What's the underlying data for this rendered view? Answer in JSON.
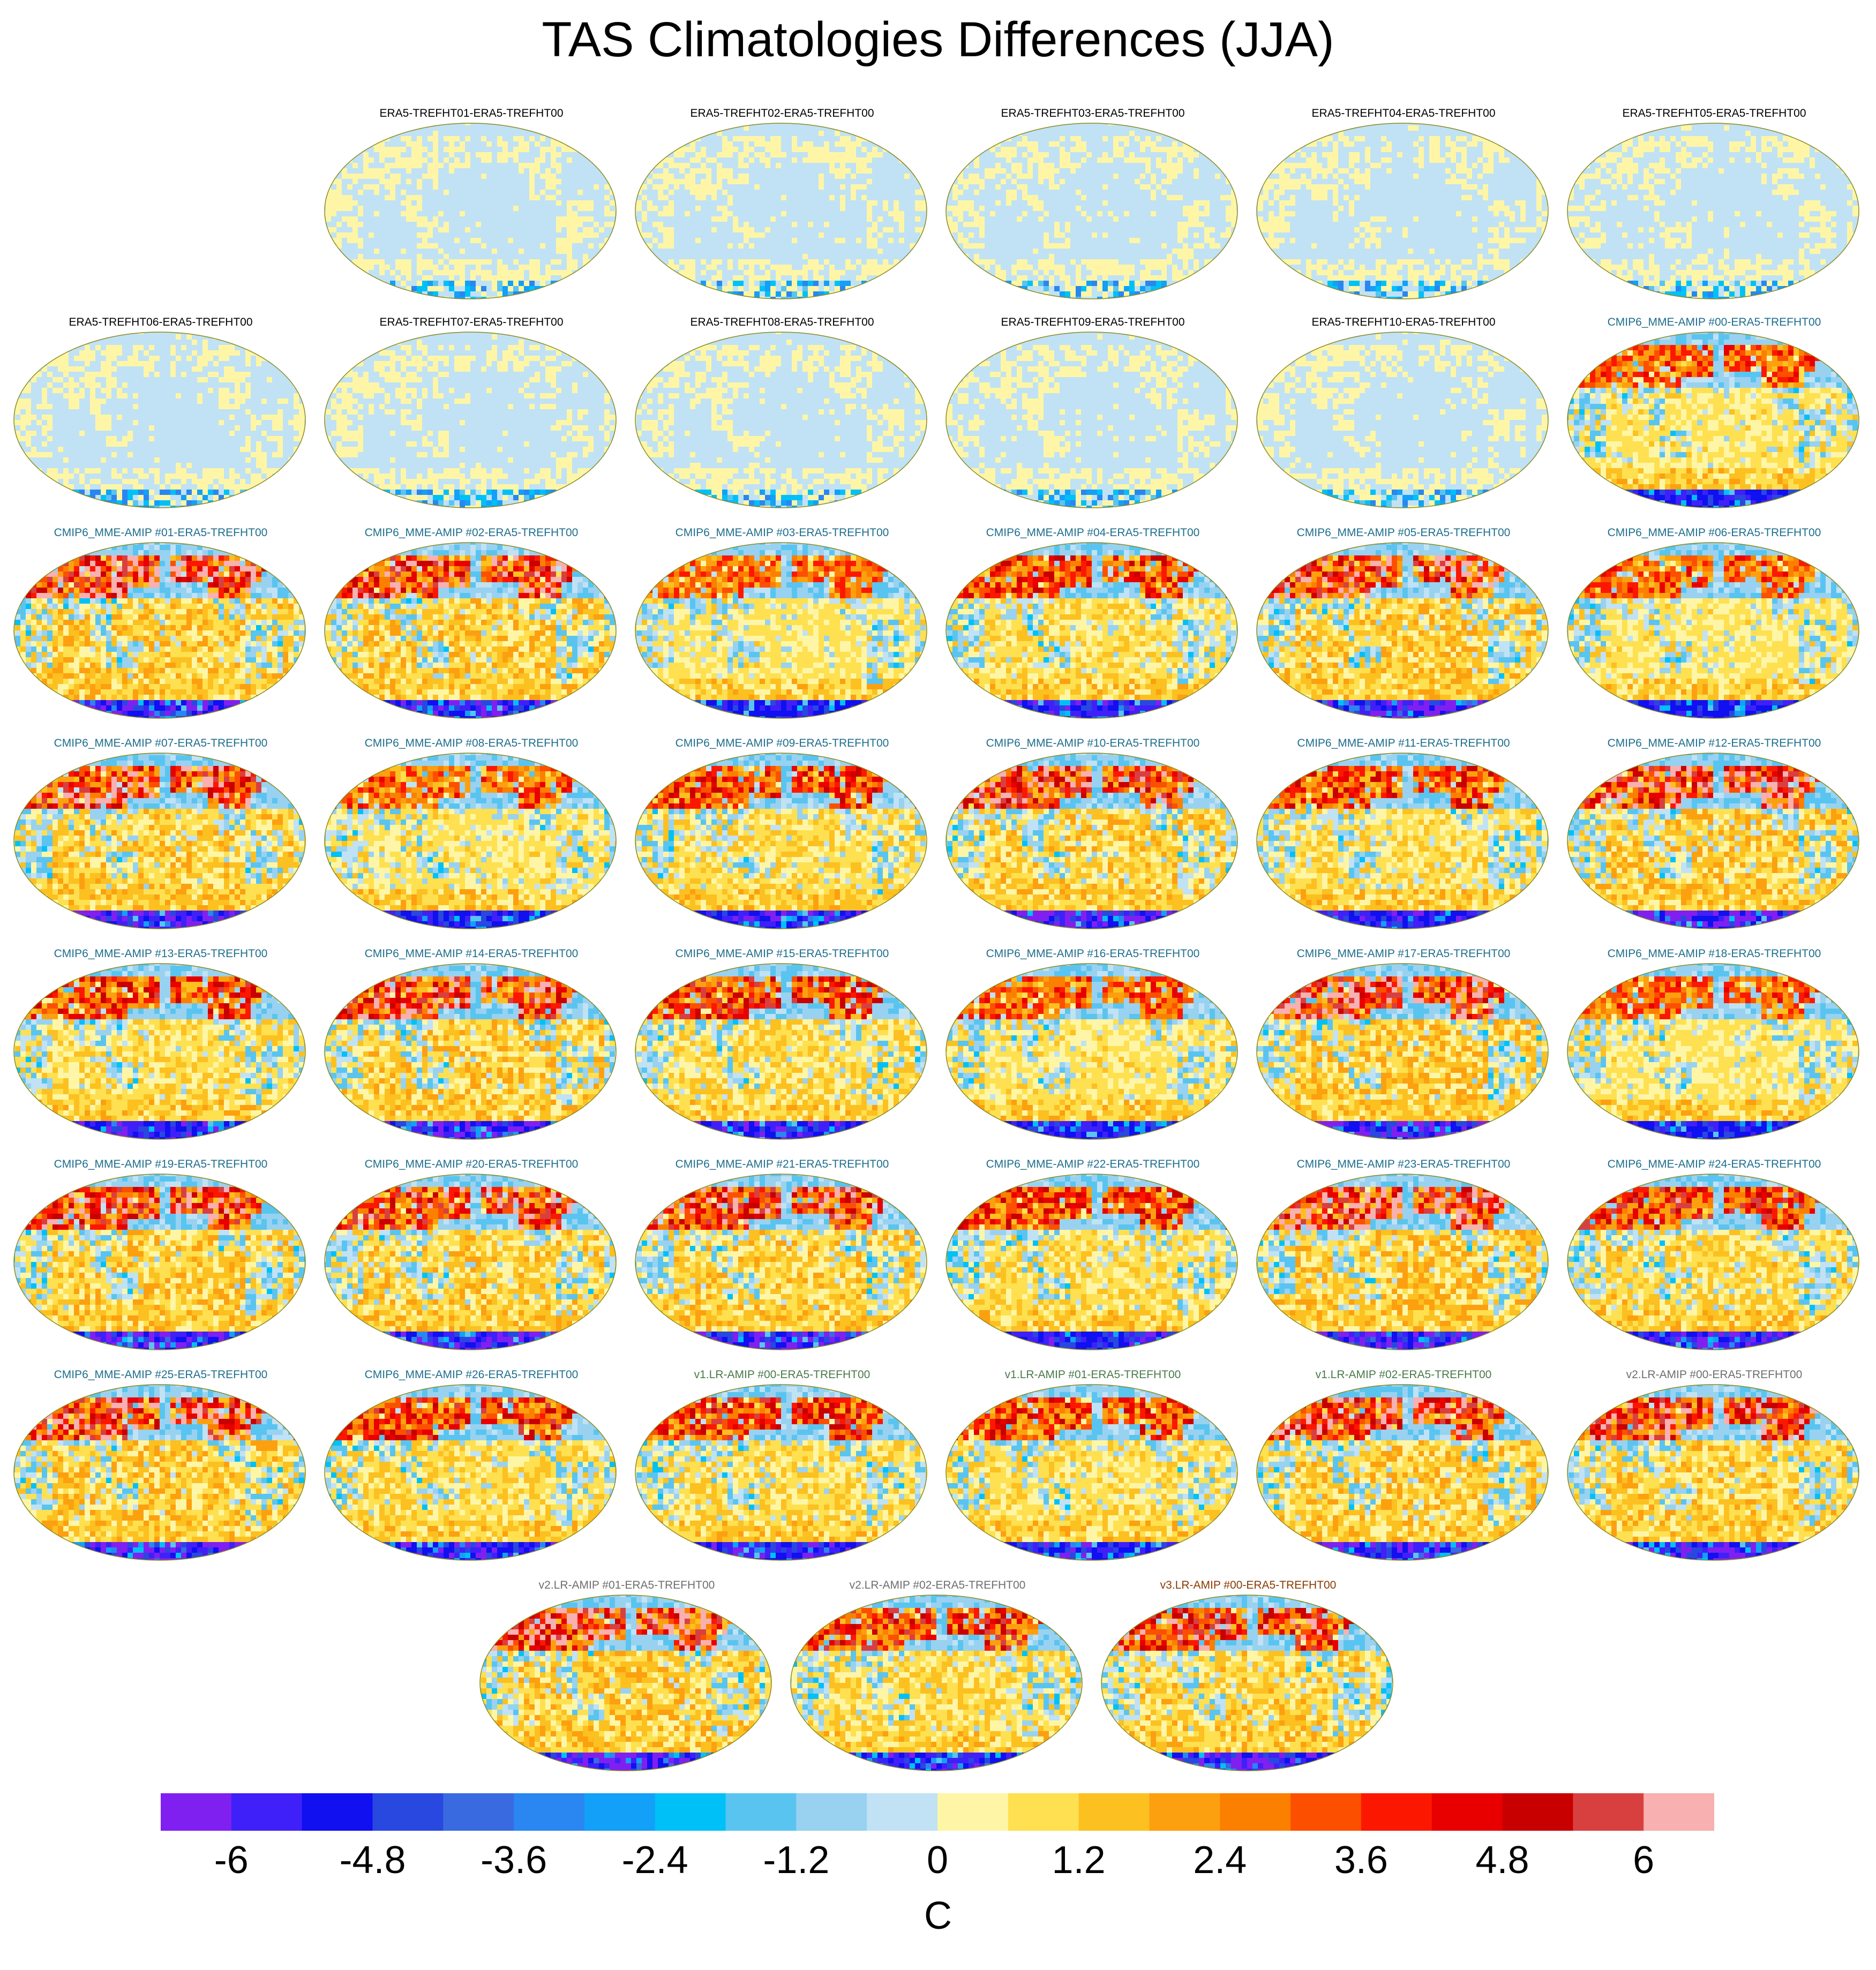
{
  "title": "TAS Climatologies Differences (JJA)",
  "units": "C",
  "chart_data": {
    "type": "heatmap",
    "title": "TAS Climatologies Differences (JJA)",
    "projection": "robinson",
    "colorbar": {
      "levels": [
        -6.6,
        -6,
        -5.4,
        -4.8,
        -4.2,
        -3.6,
        -3,
        -2.4,
        -1.8,
        -1.2,
        -0.6,
        0,
        0.6,
        1.2,
        1.8,
        2.4,
        3,
        3.6,
        4.2,
        4.8,
        5.4,
        6,
        6.6
      ],
      "tick_labels": [
        "-6",
        "-4.8",
        "-3.6",
        "-2.4",
        "-1.2",
        "0",
        "1.2",
        "2.4",
        "3.6",
        "4.8",
        "6"
      ],
      "tick_values": [
        -6,
        -4.8,
        -3.6,
        -2.4,
        -1.2,
        0,
        1.2,
        2.4,
        3.6,
        4.8,
        6
      ],
      "colors": [
        "#8020f0",
        "#4020f8",
        "#1010f0",
        "#2848e0",
        "#3a6ae0",
        "#2a86f0",
        "#12a0f8",
        "#00c0f8",
        "#5ac4f0",
        "#98d2f0",
        "#c0e2f4",
        "#fef6a6",
        "#fee050",
        "#fcc020",
        "#fca010",
        "#fc8000",
        "#fc5000",
        "#fc1800",
        "#e80000",
        "#c80000",
        "#d84040",
        "#f8b0b0"
      ],
      "label": "C"
    },
    "panels": [
      {
        "label": "ERA5-TREFHT01-ERA5-TREFHT00",
        "color": "#000000",
        "style": "era"
      },
      {
        "label": "ERA5-TREFHT02-ERA5-TREFHT00",
        "color": "#000000",
        "style": "era"
      },
      {
        "label": "ERA5-TREFHT03-ERA5-TREFHT00",
        "color": "#000000",
        "style": "era"
      },
      {
        "label": "ERA5-TREFHT04-ERA5-TREFHT00",
        "color": "#000000",
        "style": "era"
      },
      {
        "label": "ERA5-TREFHT05-ERA5-TREFHT00",
        "color": "#000000",
        "style": "era"
      },
      {
        "label": "ERA5-TREFHT06-ERA5-TREFHT00",
        "color": "#000000",
        "style": "era"
      },
      {
        "label": "ERA5-TREFHT07-ERA5-TREFHT00",
        "color": "#000000",
        "style": "era"
      },
      {
        "label": "ERA5-TREFHT08-ERA5-TREFHT00",
        "color": "#000000",
        "style": "era"
      },
      {
        "label": "ERA5-TREFHT09-ERA5-TREFHT00",
        "color": "#000000",
        "style": "era"
      },
      {
        "label": "ERA5-TREFHT10-ERA5-TREFHT00",
        "color": "#000000",
        "style": "era"
      },
      {
        "label": "CMIP6_MME-AMIP  #00-ERA5-TREFHT00",
        "color": "#1e6e8c",
        "style": "model"
      },
      {
        "label": "CMIP6_MME-AMIP  #01-ERA5-TREFHT00",
        "color": "#1e6e8c",
        "style": "model"
      },
      {
        "label": "CMIP6_MME-AMIP  #02-ERA5-TREFHT00",
        "color": "#1e6e8c",
        "style": "model"
      },
      {
        "label": "CMIP6_MME-AMIP  #03-ERA5-TREFHT00",
        "color": "#1e6e8c",
        "style": "model"
      },
      {
        "label": "CMIP6_MME-AMIP  #04-ERA5-TREFHT00",
        "color": "#1e6e8c",
        "style": "model"
      },
      {
        "label": "CMIP6_MME-AMIP  #05-ERA5-TREFHT00",
        "color": "#1e6e8c",
        "style": "model"
      },
      {
        "label": "CMIP6_MME-AMIP  #06-ERA5-TREFHT00",
        "color": "#1e6e8c",
        "style": "model"
      },
      {
        "label": "CMIP6_MME-AMIP  #07-ERA5-TREFHT00",
        "color": "#1e6e8c",
        "style": "model"
      },
      {
        "label": "CMIP6_MME-AMIP  #08-ERA5-TREFHT00",
        "color": "#1e6e8c",
        "style": "model"
      },
      {
        "label": "CMIP6_MME-AMIP  #09-ERA5-TREFHT00",
        "color": "#1e6e8c",
        "style": "model"
      },
      {
        "label": "CMIP6_MME-AMIP  #10-ERA5-TREFHT00",
        "color": "#1e6e8c",
        "style": "model"
      },
      {
        "label": "CMIP6_MME-AMIP  #11-ERA5-TREFHT00",
        "color": "#1e6e8c",
        "style": "model"
      },
      {
        "label": "CMIP6_MME-AMIP  #12-ERA5-TREFHT00",
        "color": "#1e6e8c",
        "style": "model"
      },
      {
        "label": "CMIP6_MME-AMIP  #13-ERA5-TREFHT00",
        "color": "#1e6e8c",
        "style": "model"
      },
      {
        "label": "CMIP6_MME-AMIP  #14-ERA5-TREFHT00",
        "color": "#1e6e8c",
        "style": "model"
      },
      {
        "label": "CMIP6_MME-AMIP  #15-ERA5-TREFHT00",
        "color": "#1e6e8c",
        "style": "model"
      },
      {
        "label": "CMIP6_MME-AMIP  #16-ERA5-TREFHT00",
        "color": "#1e6e8c",
        "style": "model"
      },
      {
        "label": "CMIP6_MME-AMIP  #17-ERA5-TREFHT00",
        "color": "#1e6e8c",
        "style": "model"
      },
      {
        "label": "CMIP6_MME-AMIP  #18-ERA5-TREFHT00",
        "color": "#1e6e8c",
        "style": "model"
      },
      {
        "label": "CMIP6_MME-AMIP  #19-ERA5-TREFHT00",
        "color": "#1e6e8c",
        "style": "model"
      },
      {
        "label": "CMIP6_MME-AMIP  #20-ERA5-TREFHT00",
        "color": "#1e6e8c",
        "style": "model"
      },
      {
        "label": "CMIP6_MME-AMIP  #21-ERA5-TREFHT00",
        "color": "#1e6e8c",
        "style": "model"
      },
      {
        "label": "CMIP6_MME-AMIP  #22-ERA5-TREFHT00",
        "color": "#1e6e8c",
        "style": "model"
      },
      {
        "label": "CMIP6_MME-AMIP  #23-ERA5-TREFHT00",
        "color": "#1e6e8c",
        "style": "model"
      },
      {
        "label": "CMIP6_MME-AMIP  #24-ERA5-TREFHT00",
        "color": "#1e6e8c",
        "style": "model"
      },
      {
        "label": "CMIP6_MME-AMIP  #25-ERA5-TREFHT00",
        "color": "#1e6e8c",
        "style": "model"
      },
      {
        "label": "CMIP6_MME-AMIP  #26-ERA5-TREFHT00",
        "color": "#1e6e8c",
        "style": "model"
      },
      {
        "label": "v1.LR-AMIP  #00-ERA5-TREFHT00",
        "color": "#4a7a4a",
        "style": "model"
      },
      {
        "label": "v1.LR-AMIP  #01-ERA5-TREFHT00",
        "color": "#4a7a4a",
        "style": "model"
      },
      {
        "label": "v1.LR-AMIP  #02-ERA5-TREFHT00",
        "color": "#4a7a4a",
        "style": "model"
      },
      {
        "label": "v2.LR-AMIP  #00-ERA5-TREFHT00",
        "color": "#6e6e6e",
        "style": "model"
      },
      {
        "label": "v2.LR-AMIP  #01-ERA5-TREFHT00",
        "color": "#6e6e6e",
        "style": "model"
      },
      {
        "label": "v2.LR-AMIP  #02-ERA5-TREFHT00",
        "color": "#6e6e6e",
        "style": "model"
      },
      {
        "label": "v3.LR-AMIP  #00-ERA5-TREFHT00",
        "color": "#8a3a00",
        "style": "model"
      }
    ]
  }
}
